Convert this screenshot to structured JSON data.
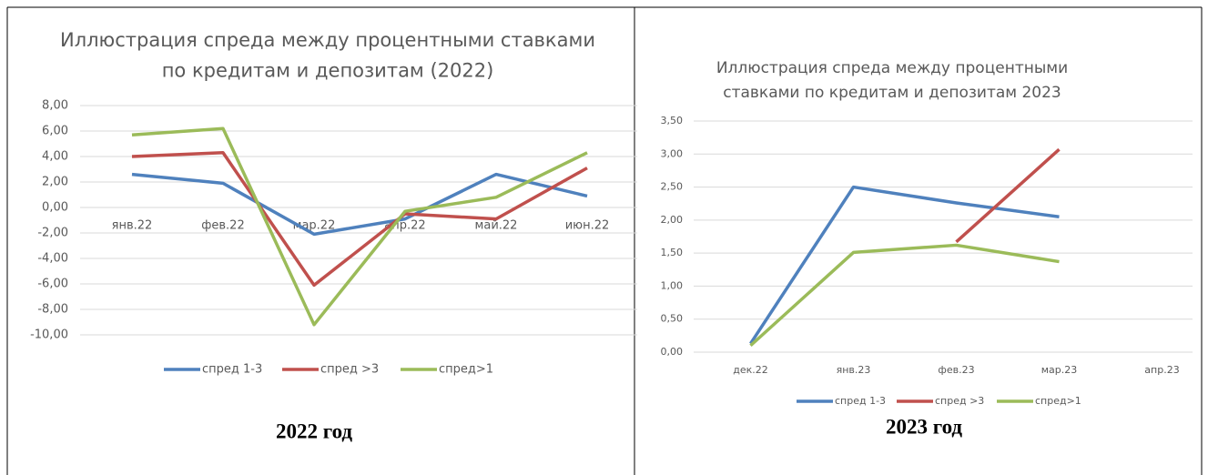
{
  "chart_data": [
    {
      "type": "line",
      "title": "Иллюстрация спреда между процентными ставками по кредитам и депозитам (2022)",
      "categories": [
        "янв.22",
        "фев.22",
        "мар.22",
        "апр.22",
        "май.22",
        "июн.22"
      ],
      "series": [
        {
          "name": "спред 1-3",
          "color": "#4f81bd",
          "values": [
            2.6,
            1.9,
            -2.1,
            -0.9,
            2.6,
            0.9
          ]
        },
        {
          "name": "спред >3",
          "color": "#c0504d",
          "values": [
            4.0,
            4.3,
            -6.1,
            -0.5,
            -0.9,
            3.1
          ]
        },
        {
          "name": "спред>1",
          "color": "#9bbb59",
          "values": [
            5.7,
            6.2,
            -9.2,
            -0.3,
            0.8,
            4.3
          ]
        }
      ],
      "ylim": [
        -10,
        8
      ],
      "yticks": [
        {
          "value": -10,
          "label": "-10,00"
        },
        {
          "value": -8,
          "label": "-8,00"
        },
        {
          "value": -6,
          "label": "-6,00"
        },
        {
          "value": -4,
          "label": "-4,00"
        },
        {
          "value": -2,
          "label": "-2,00"
        },
        {
          "value": 0,
          "label": "0,00"
        },
        {
          "value": 2,
          "label": "2,00"
        },
        {
          "value": 4,
          "label": "4,00"
        },
        {
          "value": 6,
          "label": "6,00"
        },
        {
          "value": 8,
          "label": "8,00"
        }
      ],
      "grid": true,
      "legend": "bottom"
    },
    {
      "type": "line",
      "title": "Иллюстрация спреда между процентными ставками по кредитам и депозитам 2023",
      "categories": [
        "дек.22",
        "янв.23",
        "фев.23",
        "мар.23",
        "апр.23"
      ],
      "series": [
        {
          "name": "спред 1-3",
          "color": "#4f81bd",
          "values": [
            0.13,
            2.5,
            2.26,
            2.05,
            null
          ]
        },
        {
          "name": "спред >3",
          "color": "#c0504d",
          "values": [
            null,
            null,
            1.67,
            3.07,
            null
          ]
        },
        {
          "name": "спред>1",
          "color": "#9bbb59",
          "values": [
            0.1,
            1.51,
            1.62,
            1.37,
            null
          ]
        }
      ],
      "ylim": [
        0,
        3.5
      ],
      "yticks": [
        {
          "value": 0,
          "label": "0,00"
        },
        {
          "value": 0.5,
          "label": "0,50"
        },
        {
          "value": 1,
          "label": "1,00"
        },
        {
          "value": 1.5,
          "label": "1,50"
        },
        {
          "value": 2,
          "label": "2,00"
        },
        {
          "value": 2.5,
          "label": "2,50"
        },
        {
          "value": 3,
          "label": "3,00"
        },
        {
          "value": 3.5,
          "label": "3,50"
        }
      ],
      "grid": true,
      "legend": "bottom"
    }
  ],
  "captions": [
    "2022 год",
    "2023 год"
  ]
}
